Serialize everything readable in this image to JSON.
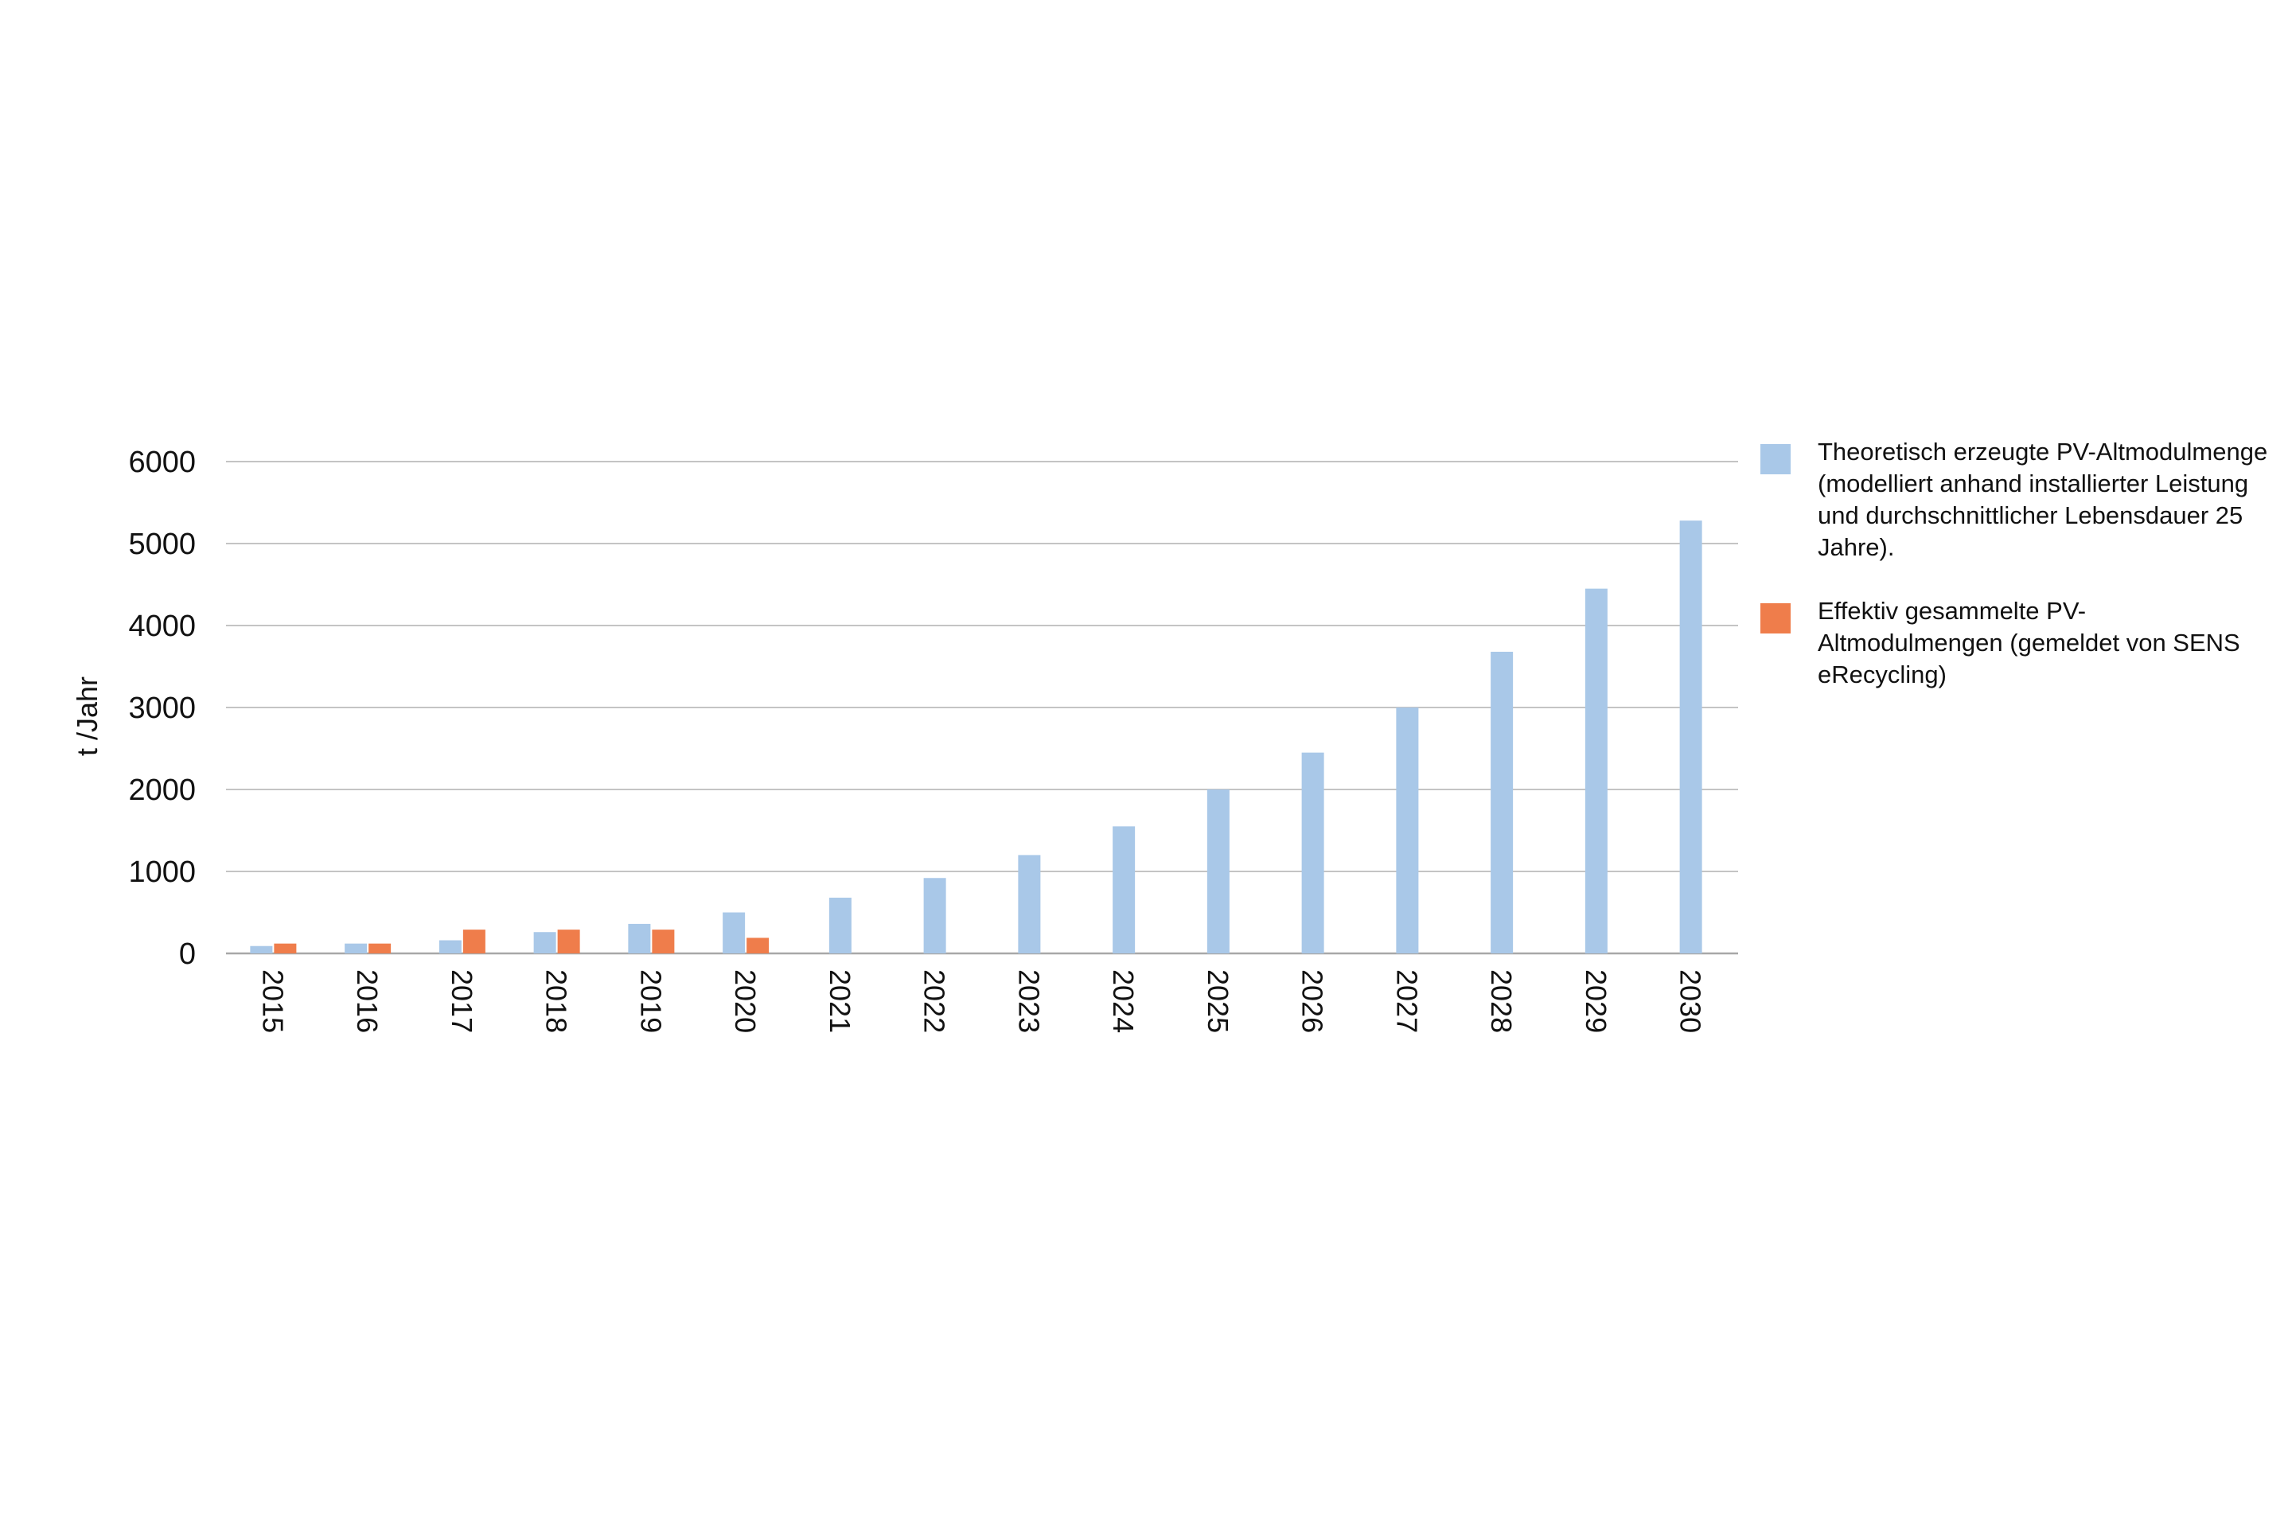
{
  "chart_data": {
    "type": "bar",
    "ylabel": "t /Jahr",
    "xlabel": "",
    "ylim": [
      0,
      6000
    ],
    "yticks": [
      "0",
      "1000",
      "2000",
      "3000",
      "4000",
      "5000",
      "6000"
    ],
    "grid": true,
    "legend_position": "right",
    "categories": [
      "2015",
      "2016",
      "2017",
      "2018",
      "2019",
      "2020",
      "2021",
      "2022",
      "2023",
      "2024",
      "2025",
      "2026",
      "2027",
      "2028",
      "2029",
      "2030"
    ],
    "series": [
      {
        "name": "Theoretisch erzeugte PV-Altmodulmenge (modelliert anhand installierter Leistung und durchschnittlicher Lebensdauer 25 Jahre).",
        "color": "#a9c8e8",
        "values": [
          90,
          120,
          160,
          260,
          360,
          500,
          680,
          920,
          1200,
          1550,
          2000,
          2450,
          3000,
          3680,
          4450,
          5280
        ]
      },
      {
        "name": "Effektiv gesammelte PV-Altmodulmengen (gemeldet von SENS eRecycling)",
        "color": "#ef7d4b",
        "values": [
          120,
          120,
          290,
          290,
          290,
          190,
          null,
          null,
          null,
          null,
          null,
          null,
          null,
          null,
          null,
          null
        ]
      }
    ]
  }
}
